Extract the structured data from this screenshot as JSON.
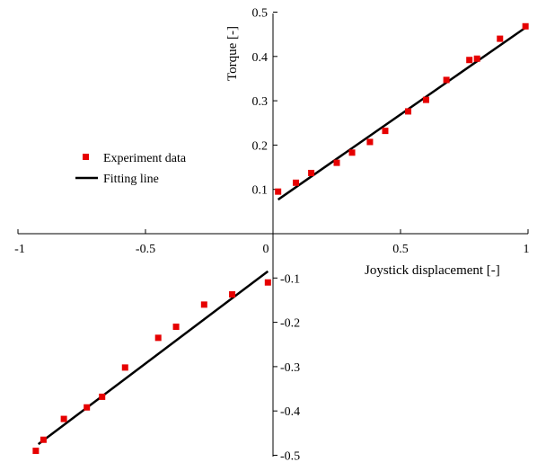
{
  "chart_data": {
    "type": "scatter",
    "xlabel": "Joystick displacement [-]",
    "ylabel": "Torque [-]",
    "xlim": [
      -1,
      1
    ],
    "ylim": [
      -0.5,
      0.5
    ],
    "x_ticks": [
      "-1",
      "-0.5",
      "0",
      "0.5",
      "1"
    ],
    "y_ticks_positive": [
      "0.1",
      "0.2",
      "0.3",
      "0.4",
      "0.5"
    ],
    "y_ticks_negative": [
      "-0.1",
      "-0.2",
      "-0.3",
      "-0.4",
      "-0.5"
    ],
    "legend": {
      "position": "left",
      "items": [
        "Experiment data",
        "Fitting line"
      ]
    },
    "series": [
      {
        "name": "Experiment data",
        "kind": "scatter",
        "color": "#e60000",
        "points": [
          [
            0.02,
            0.095
          ],
          [
            0.09,
            0.115
          ],
          [
            0.15,
            0.137
          ],
          [
            0.25,
            0.16
          ],
          [
            0.31,
            0.183
          ],
          [
            0.38,
            0.207
          ],
          [
            0.44,
            0.232
          ],
          [
            0.53,
            0.276
          ],
          [
            0.6,
            0.302
          ],
          [
            0.68,
            0.347
          ],
          [
            0.77,
            0.392
          ],
          [
            0.8,
            0.395
          ],
          [
            0.89,
            0.44
          ],
          [
            0.99,
            0.468
          ],
          [
            -0.02,
            -0.11
          ],
          [
            -0.16,
            -0.137
          ],
          [
            -0.27,
            -0.16
          ],
          [
            -0.38,
            -0.21
          ],
          [
            -0.45,
            -0.235
          ],
          [
            -0.58,
            -0.302
          ],
          [
            -0.67,
            -0.368
          ],
          [
            -0.73,
            -0.392
          ],
          [
            -0.82,
            -0.418
          ],
          [
            -0.9,
            -0.465
          ],
          [
            -0.93,
            -0.49
          ]
        ]
      },
      {
        "name": "Fitting line",
        "kind": "line",
        "color": "#000000",
        "segments": [
          [
            [
              0.02,
              0.077
            ],
            [
              0.99,
              0.465
            ]
          ],
          [
            [
              -0.02,
              -0.085
            ],
            [
              -0.92,
              -0.475
            ]
          ]
        ]
      }
    ]
  }
}
